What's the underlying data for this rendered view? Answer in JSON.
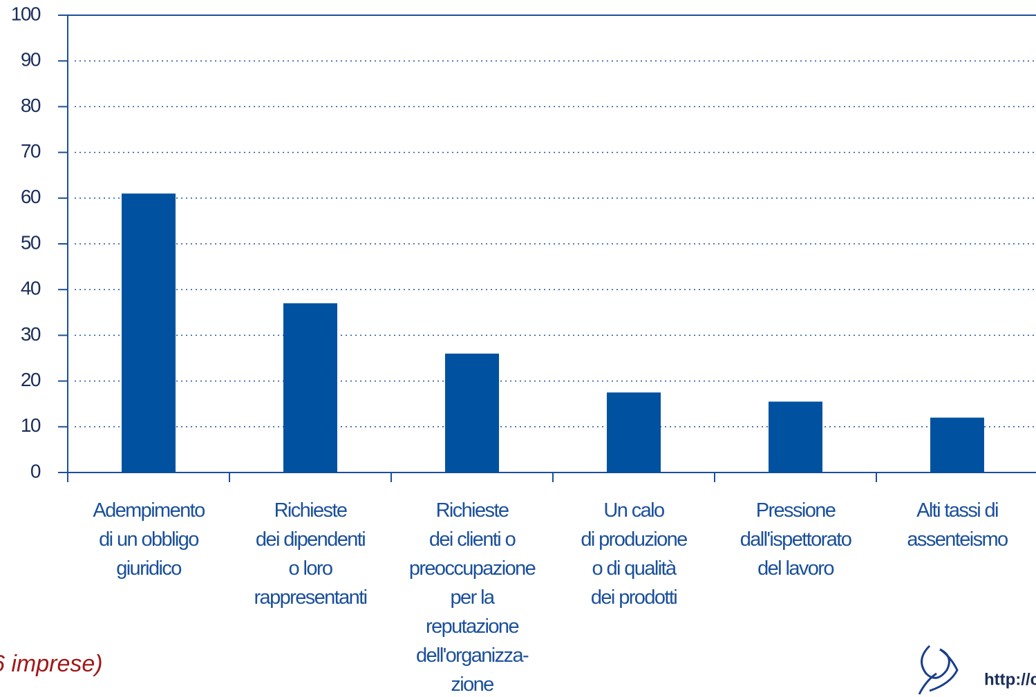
{
  "chart_data": {
    "type": "bar",
    "categories": [
      "Adempimento\ndi un obbligo\ngiuridico",
      "Richieste\ndei dipendenti\no loro\nrappresentanti",
      "Richieste\ndei clienti o\npreoccupazione\nper la\nreputazione\ndell'organizza-\nzione",
      "Un calo\ndi produzione\no di qualità\ndei prodotti",
      "Pressione\ndall'ispettorato\ndel lavoro",
      "Alti tassi di\nassenteismo"
    ],
    "values": [
      61,
      37,
      26,
      17.5,
      15.5,
      12
    ],
    "color": "#0052a0",
    "ylim": [
      0,
      100
    ],
    "yticks": [
      0,
      10,
      20,
      30,
      40,
      50,
      60,
      70,
      80,
      90,
      100
    ],
    "grid": true,
    "annotations": [
      "6 imprese)",
      "http://c"
    ]
  }
}
